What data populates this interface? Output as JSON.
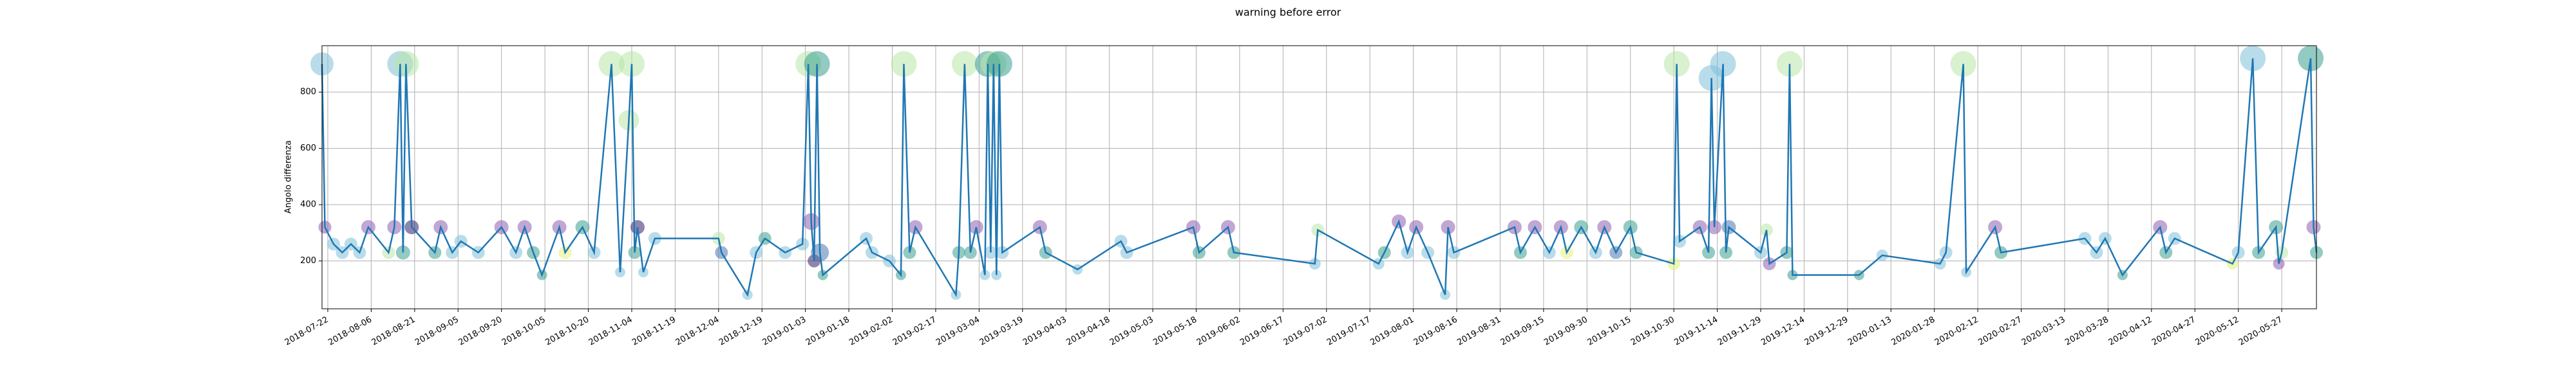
{
  "chart_data": {
    "type": "line-scatter",
    "title": "warning before error",
    "y_label": "Angolo differenza",
    "xlim": [
      "2018-07-20",
      "2020-06-08"
    ],
    "xticks": [
      "2018-07-22",
      "2018-08-06",
      "2018-08-21",
      "2018-09-05",
      "2018-09-20",
      "2018-10-05",
      "2018-10-20",
      "2018-11-04",
      "2018-11-19",
      "2018-12-04",
      "2018-12-19",
      "2019-01-03",
      "2019-01-18",
      "2019-02-02",
      "2019-02-17",
      "2019-03-04",
      "2019-03-19",
      "2019-04-03",
      "2019-04-18",
      "2019-05-03",
      "2019-05-18",
      "2019-06-02",
      "2019-06-17",
      "2019-07-02",
      "2019-07-17",
      "2019-08-01",
      "2019-08-16",
      "2019-08-31",
      "2019-09-15",
      "2019-09-30",
      "2019-10-15",
      "2019-10-30",
      "2019-11-14",
      "2019-11-29",
      "2019-12-14",
      "2019-12-29",
      "2020-01-13",
      "2020-01-28",
      "2020-02-12",
      "2020-02-27",
      "2020-03-13",
      "2020-03-28",
      "2020-04-12",
      "2020-04-27",
      "2020-05-12",
      "2020-05-27"
    ],
    "ylim": [
      30,
      965
    ],
    "yticks": [
      200,
      400,
      600,
      800
    ],
    "grid": true,
    "series": [
      {
        "color": "#1f77b4",
        "x": [
          "2018-07-20",
          "2018-07-21",
          "2018-07-24",
          "2018-07-27",
          "2018-07-30",
          "2018-08-02",
          "2018-08-05",
          "2018-08-12",
          "2018-08-14",
          "2018-08-16",
          "2018-08-17",
          "2018-08-18",
          "2018-08-20",
          "2018-08-28",
          "2018-08-30",
          "2018-09-03",
          "2018-09-06",
          "2018-09-12",
          "2018-09-20",
          "2018-09-25",
          "2018-09-28",
          "2018-10-01",
          "2018-10-04",
          "2018-10-10",
          "2018-10-12",
          "2018-10-18",
          "2018-10-22",
          "2018-10-28",
          "2018-10-31",
          "2018-11-03",
          "2018-11-04",
          "2018-11-05",
          "2018-11-06",
          "2018-11-08",
          "2018-11-12",
          "2018-12-04",
          "2018-12-05",
          "2018-12-14",
          "2018-12-17",
          "2018-12-20",
          "2018-12-27",
          "2019-01-02",
          "2019-01-04",
          "2019-01-05",
          "2019-01-06",
          "2019-01-07",
          "2019-01-08",
          "2019-01-09",
          "2019-01-24",
          "2019-01-26",
          "2019-02-01",
          "2019-02-05",
          "2019-02-06",
          "2019-02-08",
          "2019-02-10",
          "2019-02-24",
          "2019-02-25",
          "2019-02-27",
          "2019-03-01",
          "2019-03-03",
          "2019-03-06",
          "2019-03-07",
          "2019-03-08",
          "2019-03-09",
          "2019-03-10",
          "2019-03-11",
          "2019-03-12",
          "2019-03-25",
          "2019-03-27",
          "2019-04-07",
          "2019-04-22",
          "2019-04-24",
          "2019-05-17",
          "2019-05-19",
          "2019-05-29",
          "2019-05-31",
          "2019-06-28",
          "2019-06-29",
          "2019-07-20",
          "2019-07-22",
          "2019-07-27",
          "2019-07-30",
          "2019-08-02",
          "2019-08-06",
          "2019-08-12",
          "2019-08-13",
          "2019-08-15",
          "2019-09-05",
          "2019-09-07",
          "2019-09-12",
          "2019-09-17",
          "2019-09-21",
          "2019-09-23",
          "2019-09-28",
          "2019-10-03",
          "2019-10-06",
          "2019-10-10",
          "2019-10-15",
          "2019-10-17",
          "2019-10-30",
          "2019-10-31",
          "2019-11-01",
          "2019-11-08",
          "2019-11-11",
          "2019-11-12",
          "2019-11-13",
          "2019-11-16",
          "2019-11-17",
          "2019-11-18",
          "2019-11-29",
          "2019-12-01",
          "2019-12-02",
          "2019-12-08",
          "2019-12-09",
          "2019-12-10",
          "2020-01-02",
          "2020-01-10",
          "2020-01-30",
          "2020-02-01",
          "2020-02-07",
          "2020-02-08",
          "2020-02-18",
          "2020-02-20",
          "2020-03-20",
          "2020-03-24",
          "2020-03-27",
          "2020-04-02",
          "2020-04-15",
          "2020-04-17",
          "2020-04-20",
          "2020-05-10",
          "2020-05-12",
          "2020-05-17",
          "2020-05-19",
          "2020-05-25",
          "2020-05-26",
          "2020-05-27",
          "2020-06-06",
          "2020-06-07",
          "2020-06-08"
        ],
        "values": [
          900,
          320,
          260,
          230,
          260,
          230,
          320,
          230,
          320,
          900,
          230,
          900,
          320,
          230,
          320,
          230,
          270,
          230,
          320,
          230,
          320,
          230,
          150,
          320,
          230,
          320,
          230,
          900,
          160,
          700,
          900,
          230,
          320,
          160,
          280,
          280,
          230,
          80,
          230,
          280,
          230,
          260,
          900,
          340,
          200,
          900,
          230,
          150,
          280,
          230,
          200,
          150,
          900,
          230,
          320,
          80,
          230,
          900,
          230,
          320,
          150,
          900,
          230,
          900,
          150,
          900,
          230,
          320,
          230,
          170,
          270,
          230,
          320,
          230,
          320,
          230,
          190,
          310,
          190,
          230,
          340,
          230,
          320,
          230,
          80,
          320,
          230,
          320,
          230,
          320,
          230,
          320,
          230,
          320,
          230,
          320,
          230,
          320,
          230,
          190,
          900,
          270,
          320,
          230,
          850,
          320,
          900,
          230,
          320,
          230,
          310,
          190,
          230,
          900,
          150,
          150,
          220,
          190,
          230,
          900,
          160,
          320,
          230,
          280,
          230,
          280,
          150,
          320,
          230,
          280,
          190,
          230,
          920,
          230,
          320,
          190,
          230,
          920,
          320,
          230
        ],
        "sizes": [
          18,
          10,
          10,
          10,
          10,
          10,
          11,
          10,
          11,
          20,
          11,
          20,
          11,
          10,
          11,
          10,
          10,
          10,
          11,
          10,
          11,
          10,
          8,
          11,
          10,
          11,
          10,
          20,
          8,
          16,
          20,
          10,
          11,
          8,
          10,
          10,
          10,
          8,
          10,
          10,
          10,
          10,
          20,
          13,
          10,
          20,
          14,
          8,
          10,
          10,
          10,
          8,
          20,
          10,
          11,
          8,
          10,
          20,
          10,
          11,
          8,
          20,
          10,
          20,
          8,
          20,
          10,
          11,
          10,
          8,
          10,
          10,
          11,
          10,
          11,
          10,
          9,
          10,
          9,
          10,
          11,
          10,
          11,
          10,
          8,
          11,
          10,
          11,
          10,
          11,
          10,
          11,
          10,
          11,
          10,
          11,
          10,
          11,
          10,
          10,
          20,
          10,
          11,
          10,
          20,
          11,
          20,
          10,
          11,
          10,
          10,
          10,
          10,
          20,
          8,
          8,
          9,
          9,
          10,
          20,
          8,
          11,
          10,
          10,
          10,
          10,
          8,
          11,
          10,
          10,
          9,
          10,
          20,
          10,
          11,
          9,
          10,
          20,
          11,
          10
        ],
        "marker_colors": [
          "#7fbfd8",
          "#8e5fb0",
          "#7fbfd8",
          "#7fbfd8",
          "#7fbfd8",
          "#7fbfd8",
          "#8e5fb0",
          "#b8e6a8",
          "#8e5fb0",
          "#7fbfd8",
          "#3a9f8f",
          "#b8e6a8",
          "#35206e",
          "#3a9f8f",
          "#8e5fb0",
          "#7fbfd8",
          "#7fbfd8",
          "#7fbfd8",
          "#8e5fb0",
          "#7fbfd8",
          "#8e5fb0",
          "#3a9f8f",
          "#3a9f8f",
          "#8e5fb0",
          "#e6f07a",
          "#3a9f8f",
          "#7fbfd8",
          "#b8e6a8",
          "#7fbfd8",
          "#b8e6a8",
          "#b8e6a8",
          "#3a9f8f",
          "#35206e",
          "#7fbfd8",
          "#7fbfd8",
          "#b8e6a8",
          "#4a78b0",
          "#7fbfd8",
          "#7fbfd8",
          "#3a9f8f",
          "#7fbfd8",
          "#7fbfd8",
          "#b8e6a8",
          "#8e5fb0",
          "#35206e",
          "#3a9f8f",
          "#4a78b0",
          "#3a9f8f",
          "#7fbfd8",
          "#7fbfd8",
          "#7fbfd8",
          "#3a9f8f",
          "#b8e6a8",
          "#3a9f8f",
          "#8e5fb0",
          "#7fbfd8",
          "#3a9f8f",
          "#b8e6a8",
          "#3a9f8f",
          "#8e5fb0",
          "#7fbfd8",
          "#3a9f8f",
          "#7fbfd8",
          "#b8e6a8",
          "#7fbfd8",
          "#3a9f8f",
          "#7fbfd8",
          "#8e5fb0",
          "#3a9f8f",
          "#7fbfd8",
          "#7fbfd8",
          "#7fbfd8",
          "#8e5fb0",
          "#3a9f8f",
          "#8e5fb0",
          "#3a9f8f",
          "#7fbfd8",
          "#b8e6a8",
          "#7fbfd8",
          "#3a9f8f",
          "#8e5fb0",
          "#7fbfd8",
          "#8e5fb0",
          "#7fbfd8",
          "#7fbfd8",
          "#8e5fb0",
          "#7fbfd8",
          "#8e5fb0",
          "#3a9f8f",
          "#8e5fb0",
          "#7fbfd8",
          "#8e5fb0",
          "#e6f07a",
          "#3a9f8f",
          "#7fbfd8",
          "#8e5fb0",
          "#4a78b0",
          "#3a9f8f",
          "#3a9f8f",
          "#e6f07a",
          "#b8e6a8",
          "#7fbfd8",
          "#8e5fb0",
          "#3a9f8f",
          "#7fbfd8",
          "#8e5fb0",
          "#7fbfd8",
          "#3a9f8f",
          "#4a78b0",
          "#7fbfd8",
          "#b8e6a8",
          "#8e5fb0",
          "#3a9f8f",
          "#b8e6a8",
          "#3a9f8f",
          "#3a9f8f",
          "#7fbfd8",
          "#7fbfd8",
          "#7fbfd8",
          "#b8e6a8",
          "#7fbfd8",
          "#8e5fb0",
          "#3a9f8f",
          "#7fbfd8",
          "#7fbfd8",
          "#7fbfd8",
          "#3a9f8f",
          "#8e5fb0",
          "#3a9f8f",
          "#7fbfd8",
          "#e6f07a",
          "#7fbfd8",
          "#7fbfd8",
          "#3a9f8f",
          "#3a9f8f",
          "#8e5fb0",
          "#b8e6a8",
          "#3a9f8f",
          "#8e5fb0",
          "#3a9f8f"
        ]
      }
    ]
  }
}
